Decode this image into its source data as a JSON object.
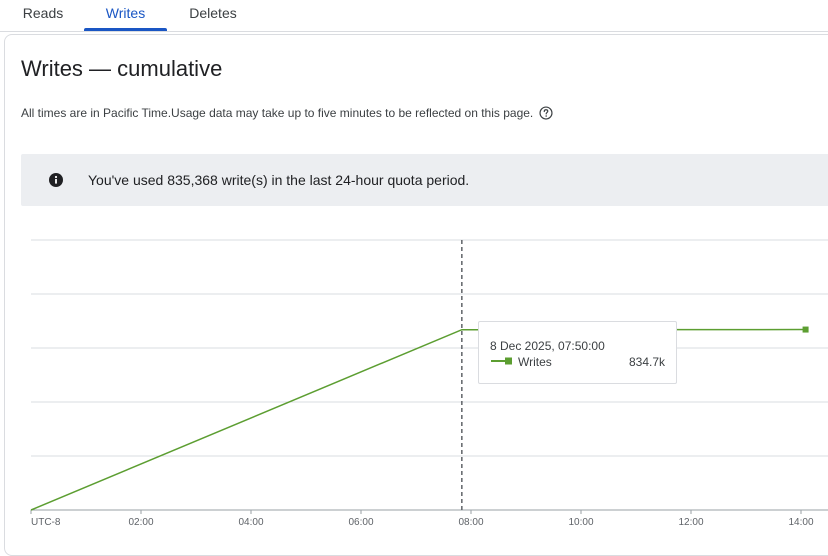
{
  "tabs": [
    {
      "label": "Reads",
      "active": false
    },
    {
      "label": "Writes",
      "active": true
    },
    {
      "label": "Deletes",
      "active": false
    }
  ],
  "page": {
    "title": "Writes — cumulative",
    "subtitle": "All times are in Pacific Time.Usage data may take up to five minutes to be reflected on this page.",
    "help_icon": "help-circle-icon"
  },
  "banner": {
    "icon": "info-icon",
    "message": "You've used 835,368 write(s) in the last 24-hour quota period."
  },
  "colors": {
    "accent": "#1a56c4",
    "series": "#5c9e31",
    "banner_bg": "#eceef1"
  },
  "tooltip": {
    "date": "8 Dec 2025, 07:50:00",
    "series_name": "Writes",
    "value": "834.7k"
  },
  "chart_data": {
    "type": "line",
    "x_tick_labels": [
      "UTC-8",
      "02:00",
      "04:00",
      "06:00",
      "08:00",
      "10:00",
      "12:00",
      "14:00"
    ],
    "series": [
      {
        "name": "Writes",
        "x": [
          "00:00",
          "07:50",
          "10:00",
          "14:05"
        ],
        "y": [
          0,
          834700,
          834700,
          835368
        ]
      }
    ],
    "xlim": [
      "00:00",
      "14:30"
    ],
    "ylim": [
      0,
      1250000
    ],
    "gridlines": [
      0,
      250000,
      500000,
      750000,
      1000000,
      1250000
    ],
    "crosshair_x": "07:50",
    "grid": true,
    "legend": "none"
  }
}
